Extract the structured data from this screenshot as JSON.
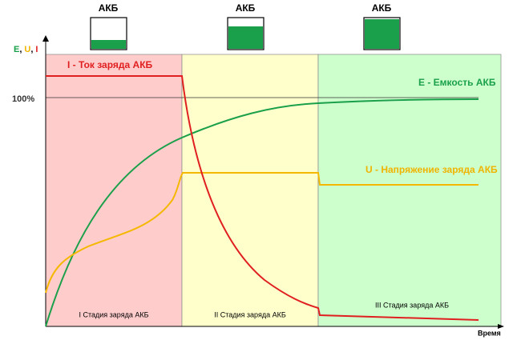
{
  "batteries": [
    {
      "label": "АКБ"
    },
    {
      "label": "АКБ"
    },
    {
      "label": "АКБ"
    }
  ],
  "axis_label": {
    "e": "E",
    "sep1": ",",
    "u": "U",
    "sep2": ",",
    "i": "I"
  },
  "full_level": "100%",
  "curves": {
    "current": "I - Ток заряда АКБ",
    "capacity": "E - Емкость АКБ",
    "voltage": "U - Напряжение заряда АКБ"
  },
  "stages": [
    "I Стадия заряда АКБ",
    "II Стадия заряда АКБ",
    "III Стадия заряда АКБ"
  ],
  "x_axis_label": "Время"
}
